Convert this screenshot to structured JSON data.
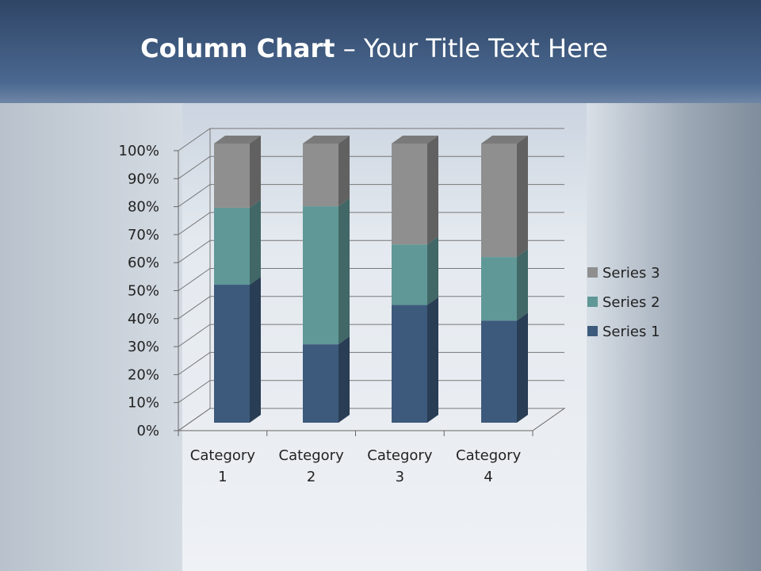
{
  "slide": {
    "title_bold": "Column Chart",
    "title_rest": " – Your Title Text Here"
  },
  "chart_data": {
    "type": "bar",
    "subtype": "3d-100%-stacked-column",
    "categories": [
      [
        "Category",
        "1"
      ],
      [
        "Category",
        "2"
      ],
      [
        "Category",
        "3"
      ],
      [
        "Category",
        "4"
      ]
    ],
    "series": [
      {
        "name": "Series 1",
        "values": [
          4.3,
          2.5,
          3.5,
          4.5
        ],
        "color": "#3d5a7c"
      },
      {
        "name": "Series 2",
        "values": [
          2.4,
          4.4,
          1.8,
          2.8
        ],
        "color": "#5f9897"
      },
      {
        "name": "Series 3",
        "values": [
          2,
          2,
          3,
          5
        ],
        "color": "#8f8f8f"
      }
    ],
    "yticks": [
      "0%",
      "10%",
      "20%",
      "30%",
      "40%",
      "50%",
      "60%",
      "70%",
      "80%",
      "90%",
      "100%"
    ],
    "ylim": [
      0,
      100
    ],
    "grid": true,
    "legend": "right"
  }
}
